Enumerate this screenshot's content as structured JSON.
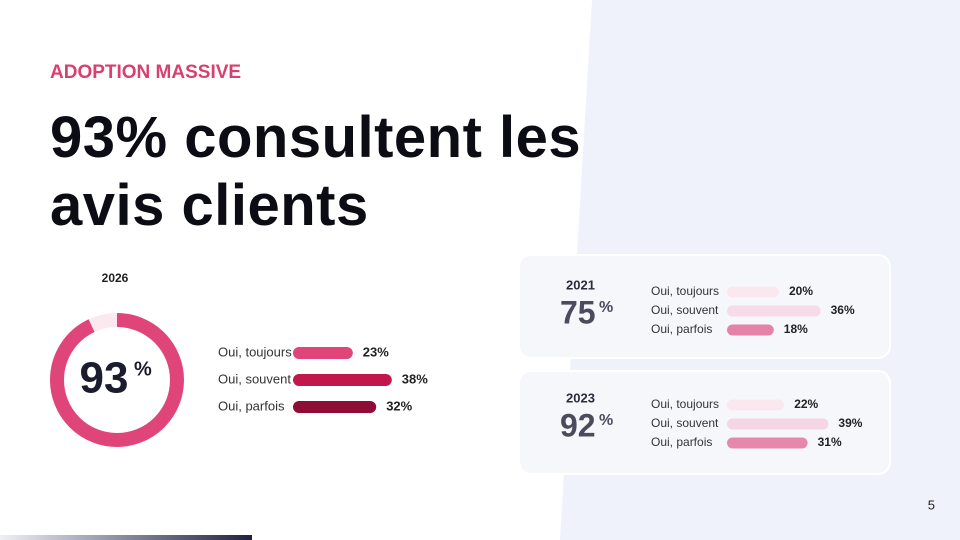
{
  "kicker": "ADOPTION MASSIVE",
  "title": "93% consultent les avis clients",
  "main": {
    "year": "2026",
    "value": 93,
    "unit": "%",
    "color": "#e0457a",
    "track": "#fbe9ef",
    "bars": [
      {
        "label": "Oui, toujours",
        "value": 23,
        "value_label": "23%",
        "color": "#e0457a"
      },
      {
        "label": "Oui, souvent",
        "value": 38,
        "value_label": "38%",
        "color": "#c0174d"
      },
      {
        "label": "Oui, parfois",
        "value": 32,
        "value_label": "32%",
        "color": "#8e0c35"
      }
    ]
  },
  "cards": [
    {
      "year": "2021",
      "value": 75,
      "unit": "%",
      "bars": [
        {
          "label": "Oui, toujours",
          "value": 20,
          "value_label": "20%",
          "color": "#fbe8ef"
        },
        {
          "label": "Oui, souvent",
          "value": 36,
          "value_label": "36%",
          "color": "#f7dbe6"
        },
        {
          "label": "Oui, parfois",
          "value": 18,
          "value_label": "18%",
          "color": "#e582a8"
        }
      ]
    },
    {
      "year": "2023",
      "value": 92,
      "unit": "%",
      "bars": [
        {
          "label": "Oui, toujours",
          "value": 22,
          "value_label": "22%",
          "color": "#fbe8ef"
        },
        {
          "label": "Oui, souvent",
          "value": 39,
          "value_label": "39%",
          "color": "#f6d6e3"
        },
        {
          "label": "Oui, parfois",
          "value": 31,
          "value_label": "31%",
          "color": "#e588ab"
        }
      ]
    }
  ],
  "page_number": "5"
}
